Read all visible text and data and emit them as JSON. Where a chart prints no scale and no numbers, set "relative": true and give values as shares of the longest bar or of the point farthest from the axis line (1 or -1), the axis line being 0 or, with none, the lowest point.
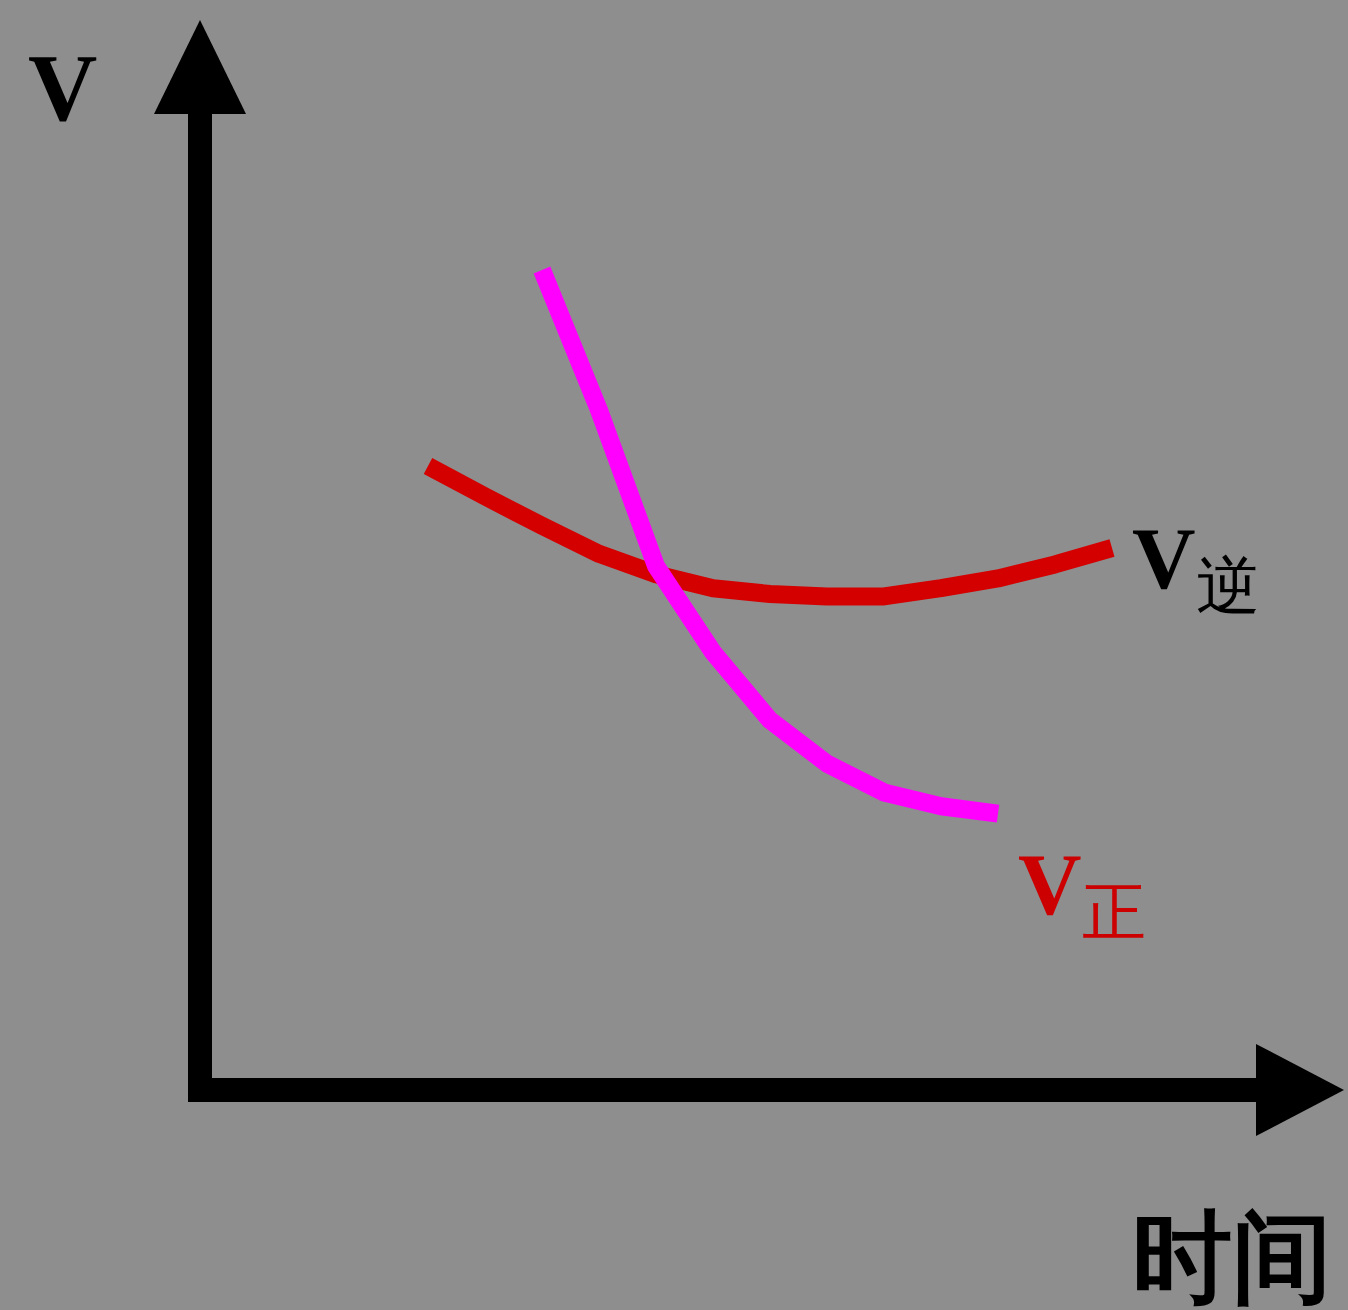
{
  "chart_data": {
    "type": "line",
    "relative": true,
    "xlabel": "时间",
    "ylabel": "V",
    "legend": false,
    "marker": "none",
    "line_style": "solid",
    "categories": [
      null,
      null,
      null,
      null,
      null,
      null,
      null,
      null,
      null,
      null,
      null,
      null,
      null
    ],
    "series": [
      {
        "name": "V$_{逆}$",
        "color": "#d40000",
        "values": [
          0.761,
          0.724,
          0.688,
          0.654,
          0.629,
          0.612,
          0.605,
          0.602,
          0.602,
          0.612,
          0.624,
          0.641,
          0.661
        ]
      },
      {
        "name": "V$_{正}$",
        "color": "#ff00ff",
        "values": [
          null,
          null,
          1.0,
          0.829,
          0.639,
          0.534,
          0.451,
          0.398,
          0.363,
          0.346,
          0.337,
          null,
          null
        ]
      }
    ]
  }
}
